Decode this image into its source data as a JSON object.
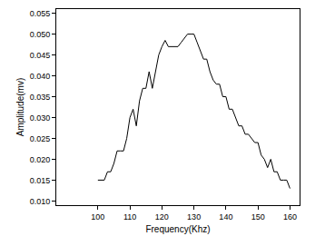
{
  "chart_data": {
    "type": "line",
    "x_label": "Frequency(Khz)",
    "y_label": "Amplitude(mv)",
    "x": [
      100,
      101,
      102,
      103,
      104,
      105,
      106,
      107,
      108,
      109,
      110,
      111,
      112,
      113,
      114,
      115,
      116,
      117,
      118,
      119,
      120,
      121,
      122,
      123,
      124,
      125,
      126,
      127,
      128,
      129,
      130,
      131,
      132,
      133,
      134,
      135,
      136,
      137,
      138,
      139,
      140,
      141,
      142,
      143,
      144,
      145,
      146,
      147,
      148,
      149,
      150,
      151,
      152,
      153,
      154,
      155,
      156,
      157,
      158,
      159,
      160
    ],
    "values": [
      0.015,
      0.015,
      0.015,
      0.017,
      0.017,
      0.019,
      0.022,
      0.022,
      0.022,
      0.025,
      0.03,
      0.032,
      0.028,
      0.034,
      0.037,
      0.037,
      0.041,
      0.037,
      0.041,
      0.045,
      0.047,
      0.0485,
      0.047,
      0.047,
      0.047,
      0.047,
      0.048,
      0.049,
      0.05,
      0.05,
      0.05,
      0.048,
      0.046,
      0.044,
      0.044,
      0.041,
      0.039,
      0.038,
      0.038,
      0.035,
      0.035,
      0.032,
      0.032,
      0.03,
      0.028,
      0.028,
      0.026,
      0.026,
      0.025,
      0.024,
      0.024,
      0.021,
      0.02,
      0.018,
      0.02,
      0.017,
      0.017,
      0.015,
      0.015,
      0.015,
      0.013
    ],
    "color": "#000000",
    "xlim": [
      87,
      163
    ],
    "xticks": [
      100,
      110,
      120,
      130,
      140,
      150,
      160
    ],
    "ylim": [
      0.009,
      0.056
    ],
    "yticks": [
      {
        "value": 0.01,
        "label": "0.010"
      },
      {
        "value": 0.015,
        "label": "0.015"
      },
      {
        "value": 0.02,
        "label": "0.020"
      },
      {
        "value": 0.025,
        "label": "0.025"
      },
      {
        "value": 0.03,
        "label": "0.030"
      },
      {
        "value": 0.035,
        "label": "0.035"
      },
      {
        "value": 0.04,
        "label": "0.040"
      },
      {
        "value": 0.045,
        "label": "0.045"
      },
      {
        "value": 0.05,
        "label": "0.050"
      },
      {
        "value": 0.055,
        "label": "0.055"
      }
    ],
    "grid": false
  }
}
